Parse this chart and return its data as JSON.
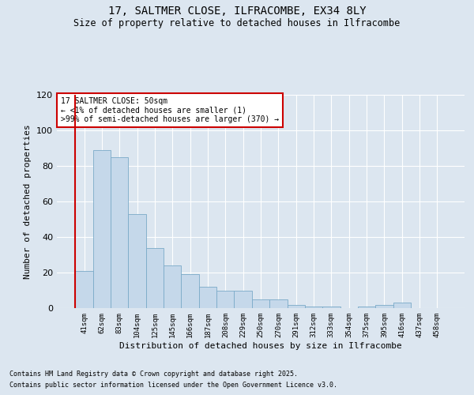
{
  "title_line1": "17, SALTMER CLOSE, ILFRACOMBE, EX34 8LY",
  "title_line2": "Size of property relative to detached houses in Ilfracombe",
  "xlabel": "Distribution of detached houses by size in Ilfracombe",
  "ylabel": "Number of detached properties",
  "categories": [
    "41sqm",
    "62sqm",
    "83sqm",
    "104sqm",
    "125sqm",
    "145sqm",
    "166sqm",
    "187sqm",
    "208sqm",
    "229sqm",
    "250sqm",
    "270sqm",
    "291sqm",
    "312sqm",
    "333sqm",
    "354sqm",
    "375sqm",
    "395sqm",
    "416sqm",
    "437sqm",
    "458sqm"
  ],
  "values": [
    21,
    89,
    85,
    53,
    34,
    24,
    19,
    12,
    10,
    10,
    5,
    5,
    2,
    1,
    1,
    0,
    1,
    2,
    3,
    0,
    0
  ],
  "bar_color": "#c5d8ea",
  "bar_edge_color": "#7aaac8",
  "annotation_border_color": "#cc0000",
  "annotation_text_line1": "17 SALTMER CLOSE: 50sqm",
  "annotation_text_line2": "← <1% of detached houses are smaller (1)",
  "annotation_text_line3": ">99% of semi-detached houses are larger (370) →",
  "marker_color": "#cc0000",
  "ylim": [
    0,
    120
  ],
  "yticks": [
    0,
    20,
    40,
    60,
    80,
    100,
    120
  ],
  "background_color": "#dce6f0",
  "grid_color": "#ffffff",
  "footer_line1": "Contains HM Land Registry data © Crown copyright and database right 2025.",
  "footer_line2": "Contains public sector information licensed under the Open Government Licence v3.0."
}
